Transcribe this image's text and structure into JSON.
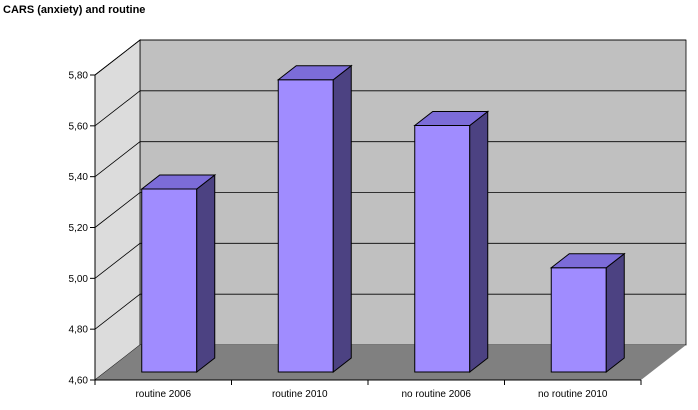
{
  "chart_data": {
    "type": "bar",
    "title": "CARS (anxiety) and routine",
    "categories": [
      "routine 2006",
      "routine 2010",
      "no routine 2006",
      "no routine 2010"
    ],
    "values": [
      5.32,
      5.75,
      5.57,
      5.01
    ],
    "ylim": [
      4.6,
      5.8
    ],
    "yticks": [
      "4,60",
      "4,80",
      "5,00",
      "5,20",
      "5,40",
      "5,60",
      "5,80"
    ],
    "grid": true,
    "style": "3d",
    "colors": {
      "bar_front": "#a08cff",
      "bar_side": "#4c4282",
      "bar_top": "#7c6cd8",
      "back_wall": "#c0c0c0",
      "side_wall": "#dcdcdc",
      "floor": "#808080"
    }
  }
}
